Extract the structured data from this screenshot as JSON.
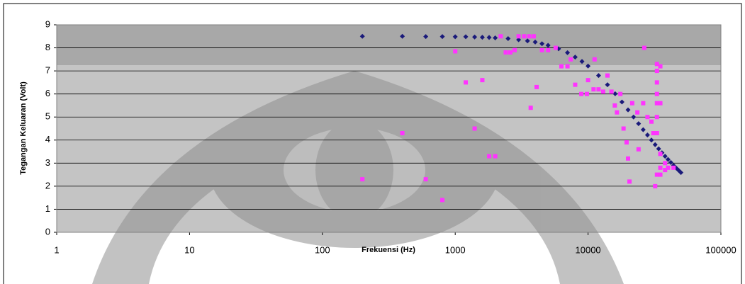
{
  "chart_data": {
    "type": "scatter",
    "x_label": "Frekuensi (Hz)",
    "y_label": "Tegangan Keluaran (Volt)",
    "log_x": true,
    "grid": true,
    "xlim": [
      1,
      100000
    ],
    "xticks": [
      1,
      10,
      100,
      1000,
      10000,
      100000
    ],
    "ylim": [
      0,
      9
    ],
    "yticks": [
      0,
      1,
      2,
      3,
      4,
      5,
      6,
      7,
      8,
      9
    ],
    "series": [
      {
        "color": "#1a1a7a",
        "marker": "diamond",
        "x": [
          200,
          400,
          600,
          800,
          1000,
          1200,
          1400,
          1600,
          1800,
          2000,
          2500,
          3000,
          3500,
          4000,
          4500,
          5000,
          6000,
          7000,
          8000,
          9000,
          10000,
          12000,
          14000,
          16000,
          18000,
          20000,
          22000,
          24000,
          26000,
          28000,
          30000,
          32000,
          34000,
          36000,
          38000,
          40000,
          42000,
          44000,
          46000,
          48000,
          50000
        ],
        "values": [
          8.5,
          8.5,
          8.49,
          8.49,
          8.48,
          8.48,
          8.47,
          8.46,
          8.45,
          8.43,
          8.4,
          8.35,
          8.3,
          8.25,
          8.18,
          8.11,
          7.96,
          7.79,
          7.6,
          7.41,
          7.21,
          6.8,
          6.4,
          6.01,
          5.65,
          5.31,
          5.0,
          4.71,
          4.45,
          4.22,
          4.0,
          3.8,
          3.62,
          3.45,
          3.3,
          3.16,
          3.03,
          2.9,
          2.79,
          2.69,
          2.59
        ]
      },
      {
        "color": "#ff33ff",
        "marker": "square",
        "x": [
          200,
          400,
          600,
          800,
          1000,
          1200,
          1400,
          1600,
          1800,
          2000,
          2200,
          2400,
          2600,
          2800,
          3000,
          3300,
          3600,
          3700,
          3900,
          4100,
          4500,
          5000,
          5700,
          6300,
          7000,
          7400,
          8000,
          8900,
          9800,
          10000,
          11000,
          11200,
          12000,
          13000,
          14000,
          15000,
          15900,
          16500,
          17500,
          18500,
          19500,
          20000,
          20500,
          21500,
          23500,
          24000,
          26000,
          26500,
          28000,
          30000,
          31000,
          32000,
          33000,
          33000,
          33000,
          33000,
          33000,
          33000,
          33000,
          33000,
          35000,
          35000,
          35000,
          35000,
          35000,
          38000,
          38000,
          40000,
          44000
        ],
        "values": [
          2.3,
          4.3,
          2.3,
          1.4,
          7.85,
          6.5,
          4.5,
          6.6,
          3.3,
          3.3,
          8.5,
          7.8,
          7.8,
          7.9,
          8.5,
          8.5,
          8.5,
          5.4,
          8.5,
          6.3,
          7.9,
          7.9,
          8.0,
          7.2,
          7.2,
          7.5,
          6.4,
          6.0,
          6.0,
          6.6,
          6.2,
          7.5,
          6.2,
          6.1,
          6.8,
          6.1,
          5.5,
          5.2,
          6.0,
          4.5,
          3.9,
          3.2,
          2.2,
          5.6,
          5.2,
          3.6,
          5.6,
          8.0,
          5.0,
          4.8,
          4.3,
          2.0,
          7.3,
          7.0,
          6.5,
          6.0,
          5.6,
          5.0,
          4.3,
          2.5,
          7.2,
          5.6,
          3.4,
          2.8,
          2.5,
          3.0,
          2.7,
          2.8,
          2.8
        ]
      }
    ]
  }
}
